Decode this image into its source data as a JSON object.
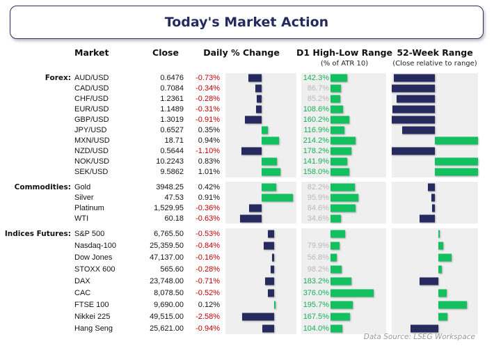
{
  "title": "Today's Market Action",
  "headers": {
    "market": "Market",
    "close": "Close",
    "daily": "Daily % Change",
    "d1": "D1 High-Low Range",
    "d1_sub": "(% of ATR 10)",
    "wk52": "52-Week Range",
    "wk52_sub": "(Close relative to range)"
  },
  "colors": {
    "navy": "#262a5f",
    "green": "#12c060",
    "negative_text": "#c00000"
  },
  "sections": [
    {
      "label": "Forex:",
      "rows": [
        {
          "name": "AUD/USD",
          "close": "0.6476",
          "pct": "-0.73%",
          "change": -0.73,
          "d1": "142.3%",
          "d1_value": 142.3,
          "wk52": -0.95
        },
        {
          "name": "CAD/USD",
          "close": "0.7084",
          "pct": "-0.34%",
          "change": -0.34,
          "d1": "86.7%",
          "d1_value": 86.7,
          "wk52": -1.0
        },
        {
          "name": "CHF/USD",
          "close": "1.2361",
          "pct": "-0.28%",
          "change": -0.28,
          "d1": "85.2%",
          "d1_value": 85.2,
          "wk52": -0.89
        },
        {
          "name": "EUR/USD",
          "close": "1.1489",
          "pct": "-0.31%",
          "change": -0.31,
          "d1": "108.6%",
          "d1_value": 108.6,
          "wk52": -0.98
        },
        {
          "name": "GBP/USD",
          "close": "1.3019",
          "pct": "-0.91%",
          "change": -0.91,
          "d1": "160.2%",
          "d1_value": 160.2,
          "wk52": -1.0
        },
        {
          "name": "JPY/USD",
          "close": "0.6527",
          "pct": "0.35%",
          "change": 0.35,
          "d1": "116.9%",
          "d1_value": 116.9,
          "wk52": -0.76
        },
        {
          "name": "MXN/USD",
          "close": "18.71",
          "pct": "0.94%",
          "change": 0.94,
          "d1": "214.2%",
          "d1_value": 214.2,
          "wk52": 1.0
        },
        {
          "name": "NZD/USD",
          "close": "0.5644",
          "pct": "-1.10%",
          "change": -1.1,
          "d1": "178.2%",
          "d1_value": 178.2,
          "wk52": -1.0
        },
        {
          "name": "NOK/USD",
          "close": "10.2243",
          "pct": "0.83%",
          "change": 0.83,
          "d1": "141.9%",
          "d1_value": 141.9,
          "wk52": 1.0
        },
        {
          "name": "SEK/USD",
          "close": "9.5862",
          "pct": "1.01%",
          "change": 1.01,
          "d1": "158.0%",
          "d1_value": 158.0,
          "wk52": 1.0
        }
      ]
    },
    {
      "label": "Commodities:",
      "rows": [
        {
          "name": "Gold",
          "close": "3948.25",
          "pct": "0.42%",
          "change": 0.42,
          "d1": "82.2%",
          "d1_value": 82.2,
          "wk52": -0.16
        },
        {
          "name": "Silver",
          "close": "47.53",
          "pct": "0.91%",
          "change": 0.91,
          "d1": "95.9%",
          "d1_value": 95.9,
          "wk52": -0.08
        },
        {
          "name": "Platinum",
          "close": "1,529.95",
          "pct": "-0.36%",
          "change": -0.36,
          "d1": "84.6%",
          "d1_value": 84.6,
          "wk52": -0.06
        },
        {
          "name": "WTI",
          "close": "60.18",
          "pct": "-0.63%",
          "change": -0.63,
          "d1": "34.6%",
          "d1_value": 34.6,
          "wk52": -0.35
        }
      ]
    },
    {
      "label": "Indices Futures:",
      "rows": [
        {
          "name": "S&P 500",
          "close": "6,765.50",
          "pct": "-0.53%",
          "change": -0.53,
          "d1": "",
          "d1_value": 125,
          "wk52": 0.02
        },
        {
          "name": "Nasdaq-100",
          "close": "25,359.50",
          "pct": "-0.84%",
          "change": -0.84,
          "d1": "79.9%",
          "d1_value": 79.9,
          "wk52": 0.12
        },
        {
          "name": "Dow Jones",
          "close": "47,137.00",
          "pct": "-0.16%",
          "change": -0.16,
          "d1": "56.8%",
          "d1_value": 56.8,
          "wk52": 0.31
        },
        {
          "name": "STOXX 600",
          "close": "565.60",
          "pct": "-0.28%",
          "change": -0.28,
          "d1": "98.2%",
          "d1_value": 98.2,
          "wk52": 0.08
        },
        {
          "name": "DAX",
          "close": "23,748.00",
          "pct": "-0.71%",
          "change": -0.71,
          "d1": "183.2%",
          "d1_value": 183.2,
          "wk52": -0.44
        },
        {
          "name": "CAC",
          "close": "8,078.50",
          "pct": "-0.52%",
          "change": -0.52,
          "d1": "376.0%",
          "d1_value": 376.0,
          "wk52": 0.19
        },
        {
          "name": "FTSE 100",
          "close": "9,690.00",
          "pct": "0.12%",
          "change": 0.12,
          "d1": "195.7%",
          "d1_value": 195.7,
          "wk52": 0.66
        },
        {
          "name": "Nikkei 225",
          "close": "49,515.00",
          "pct": "-2.58%",
          "change": -2.58,
          "d1": "167.5%",
          "d1_value": 167.5,
          "wk52": 0.21
        },
        {
          "name": "Hang Seng",
          "close": "25,621.00",
          "pct": "-0.94%",
          "change": -0.94,
          "d1": "104.0%",
          "d1_value": 104.0,
          "wk52": -0.65
        }
      ]
    }
  ],
  "footer": "Data Source: LSEG Workspace"
}
